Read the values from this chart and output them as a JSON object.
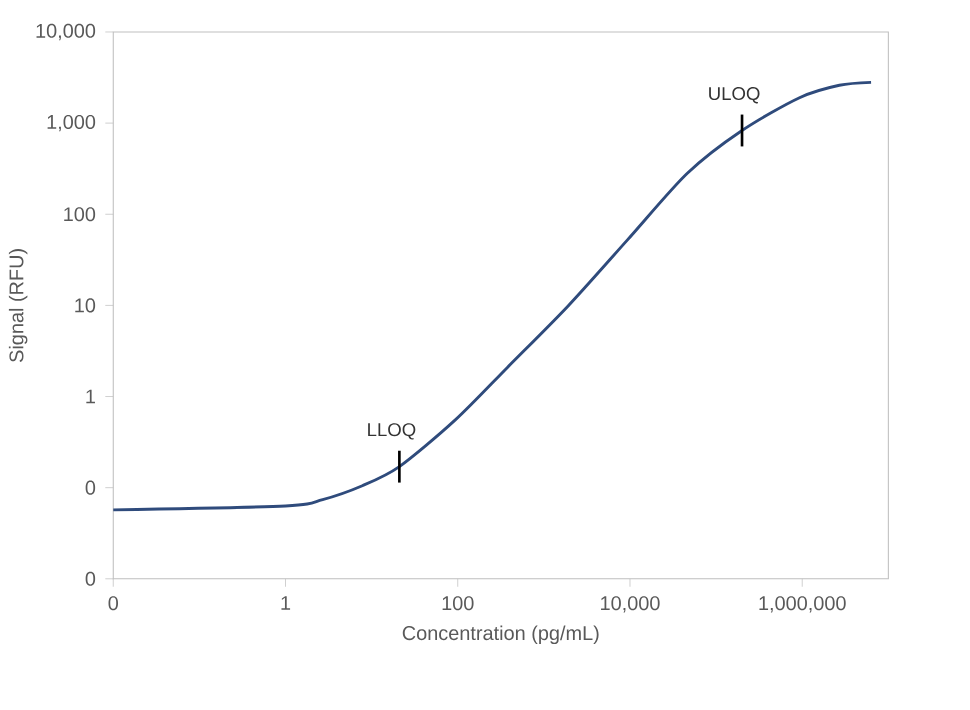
{
  "chart_data": {
    "type": "line",
    "xlabel": "Concentration (pg/mL)",
    "ylabel": "Signal (RFU)",
    "x": [
      0.01,
      1,
      2.7,
      7.8,
      21,
      93,
      380,
      1900,
      9300,
      46000,
      200000,
      930000,
      2700000,
      6300000
    ],
    "values": [
      0.057,
      0.063,
      0.074,
      0.105,
      0.17,
      0.55,
      2.1,
      9.8,
      52,
      280,
      830,
      1900,
      2600,
      2800
    ],
    "color": "#2f4b7c",
    "log": "xy",
    "xlim": [
      0.01,
      10000000
    ],
    "ylim": [
      0.01,
      10000
    ],
    "xticks": [
      {
        "value": 0.01,
        "label": "0"
      },
      1,
      100,
      {
        "value": 10000,
        "label": "10,000"
      },
      {
        "value": 1000000,
        "label": "1,000,000"
      }
    ],
    "yticks": [
      {
        "value": 0.01,
        "label": "0"
      },
      {
        "value": 0.1,
        "label": "0"
      },
      1,
      10,
      100,
      {
        "value": 1000,
        "label": "1,000"
      },
      {
        "value": 10000,
        "label": "10,000"
      }
    ],
    "annotations": [
      {
        "text": "LLOQ",
        "x": 21,
        "y": 0.17
      },
      {
        "text": "ULOQ",
        "x": 200000,
        "y": 830
      }
    ]
  }
}
